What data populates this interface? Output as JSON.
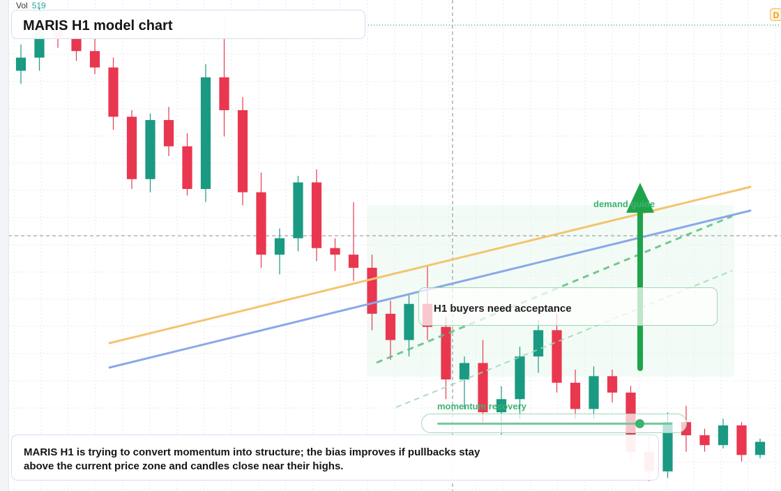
{
  "header": {
    "vol_label": "Vol",
    "vol_value": "519",
    "title": "MARIS H1 model chart",
    "corner_badge": "D"
  },
  "annotations": {
    "callout_text": "H1 buyers need acceptance",
    "zone_label": "demand guide",
    "momentum_label": "momentum recovery",
    "momentum_level": 0.86
  },
  "summary": {
    "line1": "MARIS H1 is trying to convert momentum into structure; the bias improves if pullbacks stay",
    "line2": "above the current price zone and candles close near their highs."
  },
  "colors": {
    "up": "#1a9a82",
    "down": "#e8374f",
    "orange_ma": "#f4c46f",
    "blue_ma": "#8aa8e8",
    "trend_green": "#3cb371",
    "arrow": "#1fa34a"
  },
  "chart_data": {
    "type": "candlestick",
    "x_unit": "bar index",
    "candles": [
      {
        "x": 0,
        "open": 100.2,
        "high": 101.0,
        "low": 99.8,
        "close": 100.6
      },
      {
        "x": 1,
        "open": 100.6,
        "high": 102.1,
        "low": 100.2,
        "close": 101.7
      },
      {
        "x": 2,
        "open": 101.7,
        "high": 101.9,
        "low": 100.9,
        "close": 101.2
      },
      {
        "x": 3,
        "open": 101.2,
        "high": 101.4,
        "low": 100.5,
        "close": 100.8
      },
      {
        "x": 4,
        "open": 100.8,
        "high": 101.2,
        "low": 100.1,
        "close": 100.3
      },
      {
        "x": 5,
        "open": 100.3,
        "high": 100.6,
        "low": 98.4,
        "close": 98.8
      },
      {
        "x": 6,
        "open": 98.8,
        "high": 99.0,
        "low": 96.6,
        "close": 96.9
      },
      {
        "x": 7,
        "open": 96.9,
        "high": 98.9,
        "low": 96.5,
        "close": 98.7
      },
      {
        "x": 8,
        "open": 98.7,
        "high": 99.1,
        "low": 97.6,
        "close": 97.9
      },
      {
        "x": 9,
        "open": 97.9,
        "high": 98.3,
        "low": 96.4,
        "close": 96.6
      },
      {
        "x": 10,
        "open": 96.6,
        "high": 100.4,
        "low": 96.2,
        "close": 100.0
      },
      {
        "x": 11,
        "open": 100.0,
        "high": 101.9,
        "low": 98.2,
        "close": 99.0
      },
      {
        "x": 12,
        "open": 99.0,
        "high": 99.4,
        "low": 96.1,
        "close": 96.5
      },
      {
        "x": 13,
        "open": 96.5,
        "high": 97.1,
        "low": 94.2,
        "close": 94.6
      },
      {
        "x": 14,
        "open": 94.6,
        "high": 95.4,
        "low": 94.0,
        "close": 95.1
      },
      {
        "x": 15,
        "open": 95.1,
        "high": 97.0,
        "low": 94.7,
        "close": 96.8
      },
      {
        "x": 16,
        "open": 96.8,
        "high": 97.2,
        "low": 94.4,
        "close": 94.8
      },
      {
        "x": 17,
        "open": 94.8,
        "high": 95.1,
        "low": 94.1,
        "close": 94.6
      },
      {
        "x": 18,
        "open": 94.6,
        "high": 96.2,
        "low": 93.8,
        "close": 94.2
      },
      {
        "x": 19,
        "open": 94.2,
        "high": 94.6,
        "low": 92.3,
        "close": 92.8
      },
      {
        "x": 20,
        "open": 92.8,
        "high": 93.2,
        "low": 91.4,
        "close": 92.0
      },
      {
        "x": 21,
        "open": 92.0,
        "high": 93.4,
        "low": 91.5,
        "close": 93.1
      },
      {
        "x": 22,
        "open": 93.1,
        "high": 94.3,
        "low": 92.0,
        "close": 92.4
      },
      {
        "x": 23,
        "open": 92.4,
        "high": 92.7,
        "low": 90.2,
        "close": 90.8
      },
      {
        "x": 24,
        "open": 90.8,
        "high": 91.5,
        "low": 89.9,
        "close": 91.3
      },
      {
        "x": 25,
        "open": 91.3,
        "high": 92.0,
        "low": 89.5,
        "close": 89.8
      },
      {
        "x": 26,
        "open": 89.8,
        "high": 90.6,
        "low": 88.9,
        "close": 90.2
      },
      {
        "x": 27,
        "open": 90.2,
        "high": 91.8,
        "low": 89.6,
        "close": 91.5
      },
      {
        "x": 28,
        "open": 91.5,
        "high": 92.6,
        "low": 91.0,
        "close": 92.3
      },
      {
        "x": 29,
        "open": 92.3,
        "high": 92.8,
        "low": 90.4,
        "close": 90.7
      },
      {
        "x": 30,
        "open": 90.7,
        "high": 91.1,
        "low": 89.6,
        "close": 89.9
      },
      {
        "x": 31,
        "open": 89.9,
        "high": 91.2,
        "low": 89.6,
        "close": 90.9
      },
      {
        "x": 32,
        "open": 90.9,
        "high": 91.1,
        "low": 90.1,
        "close": 90.4
      },
      {
        "x": 33,
        "open": 90.4,
        "high": 90.6,
        "low": 88.3,
        "close": 88.6
      },
      {
        "x": 34,
        "open": 88.6,
        "high": 89.1,
        "low": 87.7,
        "close": 88.0
      },
      {
        "x": 35,
        "open": 88.0,
        "high": 89.8,
        "low": 87.8,
        "close": 89.5
      },
      {
        "x": 36,
        "open": 89.5,
        "high": 90.0,
        "low": 88.6,
        "close": 89.1
      },
      {
        "x": 37,
        "open": 89.1,
        "high": 89.3,
        "low": 88.6,
        "close": 88.8
      },
      {
        "x": 38,
        "open": 88.8,
        "high": 89.6,
        "low": 88.7,
        "close": 89.4
      },
      {
        "x": 39,
        "open": 89.4,
        "high": 89.5,
        "low": 88.3,
        "close": 88.5
      },
      {
        "x": 40,
        "open": 88.5,
        "high": 89.0,
        "low": 88.4,
        "close": 88.9
      }
    ]
  }
}
